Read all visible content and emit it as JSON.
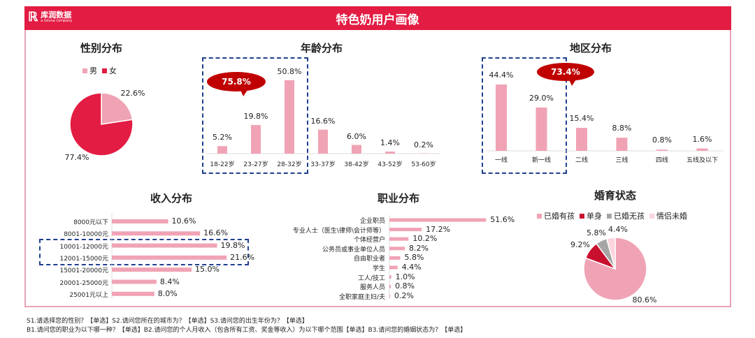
{
  "header": {
    "title": "特色奶用户画像",
    "logo_cn": "库润数据",
    "logo_en": "a toluna company"
  },
  "colors": {
    "pink": "#f0a3b5",
    "red": "#e31c43",
    "darkred": "#c00000",
    "gray": "#a6a6a6",
    "lightpink": "#fcd5dd"
  },
  "callouts": {
    "age": "75.8%",
    "region": "73.4%"
  },
  "chart_data": [
    {
      "id": "gender",
      "type": "pie",
      "title": "性别分布",
      "legend": [
        "男",
        "女"
      ],
      "values": [
        22.6,
        77.4
      ],
      "labels": [
        "22.6%",
        "77.4%"
      ]
    },
    {
      "id": "age",
      "type": "bar",
      "title": "年龄分布",
      "categories": [
        "18-22岁",
        "23-27岁",
        "28-32岁",
        "33-37岁",
        "38-42岁",
        "43-52岁",
        "53-60岁"
      ],
      "values": [
        5.2,
        19.8,
        50.8,
        16.6,
        6.0,
        1.4,
        0.2
      ],
      "labels": [
        "5.2%",
        "19.8%",
        "50.8%",
        "16.6%",
        "6.0%",
        "1.4%",
        "0.2%"
      ]
    },
    {
      "id": "region",
      "type": "bar",
      "title": "地区分布",
      "categories": [
        "一线",
        "新一线",
        "二线",
        "三线",
        "四线",
        "五线及以下"
      ],
      "values": [
        44.4,
        29.0,
        15.4,
        8.8,
        0.8,
        1.6
      ],
      "labels": [
        "44.4%",
        "29.0%",
        "15.4%",
        "8.8%",
        "0.8%",
        "1.6%"
      ]
    },
    {
      "id": "income",
      "type": "bar-horizontal",
      "title": "收入分布",
      "categories": [
        "8000元以下",
        "8001-10000元",
        "10001-12000元",
        "12001-15000元",
        "15001-20000元",
        "20001-25000元",
        "25001元以上"
      ],
      "values": [
        10.6,
        16.6,
        19.8,
        21.6,
        15.0,
        8.4,
        8.0
      ],
      "labels": [
        "10.6%",
        "16.6%",
        "19.8%",
        "21.6%",
        "15.0%",
        "8.4%",
        "8.0%"
      ]
    },
    {
      "id": "occupation",
      "type": "bar-horizontal",
      "title": "职业分布",
      "categories": [
        "企业职员",
        "专业人士（医生\\律师\\会计师等）",
        "个体经营户",
        "公务员或事业单位人员",
        "自由职业者",
        "学生",
        "工人/技工",
        "服务人员",
        "全职家庭主妇/夫"
      ],
      "values": [
        51.6,
        17.2,
        10.2,
        8.2,
        5.8,
        4.4,
        1.0,
        0.8,
        0.2
      ],
      "labels": [
        "51.6%",
        "17.2%",
        "10.2%",
        "8.2%",
        "5.8%",
        "4.4%",
        "1.0%",
        "0.8%",
        "0.2%"
      ]
    },
    {
      "id": "marriage",
      "type": "pie",
      "title": "婚育状态",
      "legend": [
        "已婚有孩",
        "单身",
        "已婚无孩",
        "情侣未婚"
      ],
      "values": [
        80.6,
        9.2,
        5.8,
        4.4
      ],
      "labels": [
        "80.6%",
        "9.2%",
        "5.8%",
        "4.4%"
      ]
    }
  ],
  "footnotes": [
    "S1.请选择您的性别？【单选】S2.请问您所在的城市为？【单选】S3.请问您的出生年份为？【单选】",
    "B1.请问您的职业为以下哪一种？【单选】B2.请问您的个人月收入（包含所有工资、奖金等收入）为以下哪个范围【单选】B3.请问您的婚姻状态为？【单选】"
  ]
}
